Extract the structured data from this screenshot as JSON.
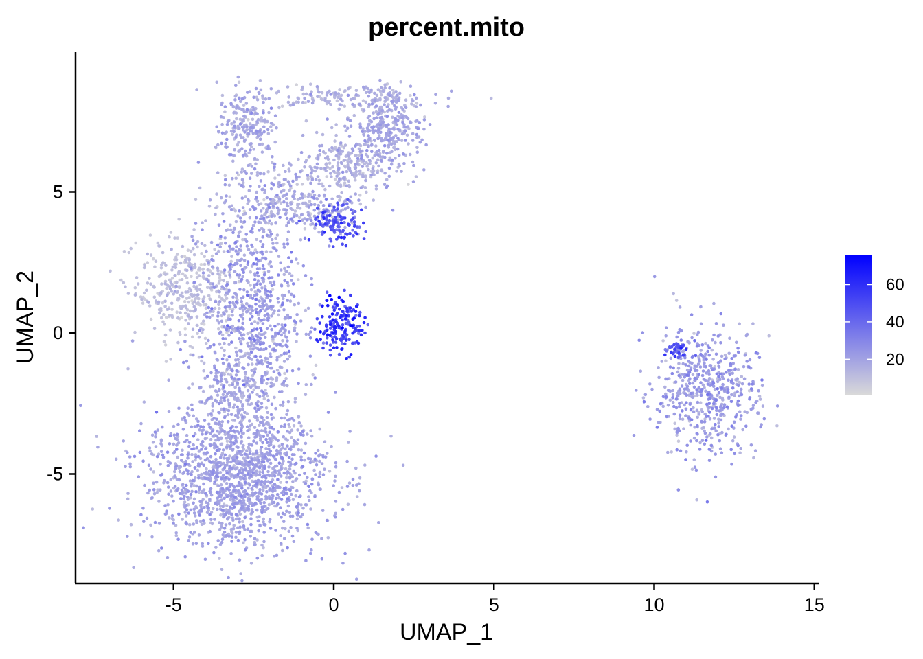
{
  "chart_data": {
    "type": "scatter",
    "title": "percent.mito",
    "xlabel": "UMAP_1",
    "ylabel": "UMAP_2",
    "xlim": [
      -8,
      15
    ],
    "ylim": [
      -8.8,
      10
    ],
    "x_ticks": [
      -5,
      0,
      5,
      10,
      15
    ],
    "y_ticks": [
      -5,
      0,
      5
    ],
    "grid": false,
    "legend": {
      "placement": "right",
      "type": "colorbar",
      "ticks": [
        20,
        40,
        60
      ],
      "range": [
        1,
        76
      ],
      "low_color": "#d9d9d9",
      "high_color": "#0000ff"
    },
    "color_variable": "percent.mito",
    "clusters": [
      {
        "id": "top-loop-left",
        "cx": -2.7,
        "cy": 7.2,
        "sx": 0.45,
        "sy": 0.75,
        "n": 220,
        "mean": 17,
        "sd": 4
      },
      {
        "id": "top-loop-upper",
        "cx": 0.0,
        "cy": 8.4,
        "sx": 1.5,
        "sy": 0.22,
        "n": 150,
        "mean": 14,
        "sd": 4
      },
      {
        "id": "top-loop-right",
        "cx": 1.6,
        "cy": 7.3,
        "sx": 0.6,
        "sy": 0.7,
        "n": 320,
        "mean": 17,
        "sd": 4
      },
      {
        "id": "top-loop-diagonal",
        "cx": 0.4,
        "cy": 5.9,
        "sx": 0.8,
        "sy": 0.5,
        "n": 260,
        "mean": 14,
        "sd": 4
      },
      {
        "id": "neck",
        "cx": -1.3,
        "cy": 4.5,
        "sx": 1.1,
        "sy": 0.55,
        "n": 300,
        "mean": 16,
        "sd": 5
      },
      {
        "id": "left-arm",
        "cx": -4.6,
        "cy": 1.5,
        "sx": 0.8,
        "sy": 0.9,
        "n": 380,
        "mean": 9,
        "sd": 3
      },
      {
        "id": "center-body",
        "cx": -2.5,
        "cy": 1.0,
        "sx": 0.8,
        "sy": 1.8,
        "n": 700,
        "mean": 20,
        "sd": 6
      },
      {
        "id": "center-stem",
        "cx": -2.9,
        "cy": -1.9,
        "sx": 0.7,
        "sy": 0.8,
        "n": 260,
        "mean": 17,
        "sd": 4
      },
      {
        "id": "bottom-blob",
        "cx": -3.0,
        "cy": -5.1,
        "sx": 1.45,
        "sy": 1.2,
        "n": 1500,
        "mean": 19,
        "sd": 4
      },
      {
        "id": "high-mito-arc",
        "cx": 0.2,
        "cy": 0.3,
        "sx": 0.35,
        "sy": 0.5,
        "n": 170,
        "mean": 55,
        "sd": 9
      },
      {
        "id": "high-mito-patch",
        "cx": 0.1,
        "cy": 3.9,
        "sx": 0.4,
        "sy": 0.35,
        "n": 120,
        "mean": 47,
        "sd": 8
      },
      {
        "id": "right-island",
        "cx": 11.6,
        "cy": -2.1,
        "sx": 0.8,
        "sy": 1.15,
        "n": 560,
        "mean": 21,
        "sd": 6
      },
      {
        "id": "right-island-spot",
        "cx": 10.7,
        "cy": -0.6,
        "sx": 0.18,
        "sy": 0.2,
        "n": 40,
        "mean": 45,
        "sd": 8
      }
    ]
  }
}
